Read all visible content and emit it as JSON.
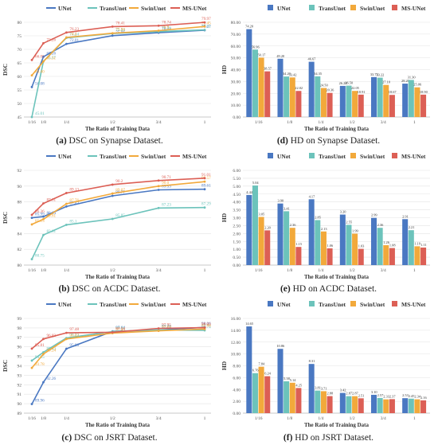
{
  "colors": {
    "UNet": "#4a78c2",
    "TransUnet": "#6cc3bb",
    "SwinUnet": "#f2a93b",
    "MS-UNet": "#dc5f55"
  },
  "chart_data": [
    {
      "id": "a",
      "type": "line",
      "caption_tag": "(a)",
      "caption_text": " DSC on Synapse Dataset.",
      "xlabel": "The Ratio of Training Data",
      "ylabel": "DSC",
      "categories": [
        "1/16",
        "1/8",
        "1/4",
        "1/2",
        "3/4",
        "1"
      ],
      "x_positions": [
        0.0625,
        0.125,
        0.25,
        0.5,
        0.75,
        1.0
      ],
      "ylim": [
        45,
        80
      ],
      "yticks": [
        45,
        50,
        55,
        60,
        65,
        70,
        75,
        80
      ],
      "series": [
        {
          "name": "UNet",
          "values": [
            56.08,
            67.26,
            72.01,
            75.06,
            76.14,
            77.07
          ],
          "labels": [
            "56.08",
            "67.26",
            "72.01",
            "75.06",
            "76.14",
            "77.07"
          ]
        },
        {
          "name": "TransUnet",
          "values": [
            45.01,
            65.57,
            74.24,
            75.84,
            76.56,
            77.21
          ],
          "labels": [
            "45.01",
            "65.57",
            "74.24",
            "75.84",
            "76.56",
            "77.21"
          ]
        },
        {
          "name": "SwinUnet",
          "values": [
            60.4,
            65.51,
            74.4,
            75.96,
            76.9,
            78.45
          ],
          "labels": [
            "60.40",
            "65.51",
            "74.4",
            "75.96",
            "76.9",
            "78.45"
          ]
        },
        {
          "name": "MS-UNet",
          "values": [
            66.05,
            72.26,
            76.23,
            78.41,
            78.74,
            79.97
          ],
          "labels": [
            "66.05",
            "72.26",
            "76.23",
            "78.41",
            "78.74",
            "79.97"
          ]
        }
      ]
    },
    {
      "id": "d",
      "type": "bar",
      "caption_tag": "(d)",
      "caption_text": " HD on Synapse Dataset.",
      "xlabel": "The Ratio of Training Data",
      "ylabel": "HD",
      "categories": [
        "1/16",
        "1/8",
        "1/4",
        "1/2",
        "3/4",
        "1"
      ],
      "ylim": [
        0,
        80
      ],
      "yticks": [
        0,
        10,
        20,
        30,
        40,
        50,
        60,
        70,
        80
      ],
      "ytick_labels": [
        "0.00",
        "10.00",
        "20.00",
        "30.00",
        "40.00",
        "50.00",
        "60.00",
        "70.00",
        "80.00"
      ],
      "series": [
        {
          "name": "UNet",
          "values": [
            74.2,
            49.2,
            46.67,
            26.28,
            33.73,
            28.2
          ],
          "labels": [
            "74.20",
            "49.20",
            "46.67",
            "26.28",
            "33.73",
            "28.20"
          ]
        },
        {
          "name": "TransUnet",
          "values": [
            56.96,
            34.2,
            34.35,
            26.5,
            33.22,
            31.3
          ],
          "labels": [
            "56.96",
            "34.20",
            "34.35",
            "26.50",
            "33.22",
            "31.30"
          ]
        },
        {
          "name": "SwinUnet",
          "values": [
            50.17,
            33.42,
            24.5,
            22.05,
            27.1,
            25.06
          ],
          "labels": [
            "50.17",
            "33.42",
            "24.50",
            "22.05",
            "27.10",
            "25.06"
          ]
        },
        {
          "name": "MS-UNet",
          "values": [
            38.57,
            22.02,
            20.36,
            18.91,
            18.67,
            18.9
          ],
          "labels": [
            "38.57",
            "22.02",
            "20.36",
            "18.91",
            "18.67",
            "18.90"
          ]
        }
      ]
    },
    {
      "id": "b",
      "type": "line",
      "caption_tag": "(b)",
      "caption_text": " DSC on ACDC Dataset.",
      "xlabel": "The Ratio of Training Data",
      "ylabel": "DSC",
      "categories": [
        "1/16",
        "1/8",
        "1/4",
        "1/2",
        "3/4",
        "1"
      ],
      "x_positions": [
        0.0625,
        0.125,
        0.25,
        0.5,
        0.75,
        1.0
      ],
      "ylim": [
        80,
        92
      ],
      "yticks": [
        80,
        82,
        84,
        86,
        88,
        90,
        92
      ],
      "series": [
        {
          "name": "UNet",
          "values": [
            85.99,
            86.14,
            87.42,
            88.77,
            89.53,
            89.61
          ],
          "labels": [
            "85.99",
            "86.14",
            "87.42",
            "88.77",
            "89.53",
            "89.61"
          ]
        },
        {
          "name": "TransUnet",
          "values": [
            80.75,
            83.81,
            85.1,
            85.85,
            87.23,
            87.29
          ],
          "labels": [
            "80.75",
            "83.81",
            "85.1",
            "85.85",
            "87.23",
            "87.29"
          ]
        },
        {
          "name": "SwinUnet",
          "values": [
            85.15,
            85.81,
            87.76,
            89.07,
            90.0,
            90.57
          ],
          "labels": [
            "85.15",
            "85.81",
            "87.76",
            "89.07",
            "90.0",
            "90.57"
          ]
        },
        {
          "name": "MS-UNet",
          "values": [
            86.36,
            87.81,
            89.13,
            90.2,
            90.71,
            91.01
          ],
          "labels": [
            "86.36",
            "87.81",
            "89.13",
            "90.2",
            "90.71",
            "91.01"
          ]
        }
      ]
    },
    {
      "id": "e",
      "type": "bar",
      "caption_tag": "(e)",
      "caption_text": " HD on ACDC Dataset.",
      "xlabel": "The Ratio of Training Data",
      "ylabel": "HD",
      "categories": [
        "1/16",
        "1/8",
        "1/4",
        "1/2",
        "3/4",
        "1"
      ],
      "ylim": [
        0,
        6
      ],
      "yticks": [
        0,
        0.5,
        1,
        1.5,
        2,
        2.5,
        3,
        3.5,
        4,
        4.5,
        5,
        5.5,
        6
      ],
      "ytick_labels": [
        "0.00",
        "0.50",
        "1.00",
        "1.50",
        "2.00",
        "2.50",
        "3.00",
        "3.50",
        "4.00",
        "4.50",
        "5.00",
        "5.50",
        "6.00"
      ],
      "series": [
        {
          "name": "UNet",
          "values": [
            4.44,
            3.9,
            4.17,
            3.2,
            2.99,
            2.91
          ],
          "labels": [
            "4.44",
            "3.90",
            "4.17",
            "3.20",
            "2.99",
            "2.91"
          ]
        },
        {
          "name": "TransUnet",
          "values": [
            5.04,
            3.41,
            2.85,
            2.55,
            2.36,
            2.21
          ],
          "labels": [
            "5.04",
            "3.41",
            "2.85",
            "2.55",
            "2.36",
            "2.21"
          ]
        },
        {
          "name": "SwinUnet",
          "values": [
            3.05,
            2.36,
            2.13,
            1.99,
            1.26,
            1.19
          ],
          "labels": [
            "3.05",
            "2.36",
            "2.13",
            "1.99",
            "1.26",
            "1.19"
          ]
        },
        {
          "name": "MS-UNet",
          "values": [
            2.2,
            1.15,
            1.06,
            1.03,
            1.08,
            1.11
          ],
          "labels": [
            "2.20",
            "1.15",
            "1.06",
            "1.03",
            "1.08",
            "1.11"
          ]
        }
      ]
    },
    {
      "id": "c",
      "type": "line",
      "caption_tag": "(c)",
      "caption_text": " DSC on JSRT Dataset.",
      "xlabel": "The Ratio of Training Data",
      "ylabel": "DSC",
      "categories": [
        "1/16",
        "1/8",
        "1/4",
        "1/2",
        "3/4",
        "1"
      ],
      "x_positions": [
        0.0625,
        0.125,
        0.25,
        0.5,
        0.75,
        1.0
      ],
      "ylim": [
        89,
        99
      ],
      "yticks": [
        89,
        90,
        91,
        92,
        93,
        94,
        95,
        96,
        97,
        98,
        99
      ],
      "series": [
        {
          "name": "UNet",
          "values": [
            89.96,
            92.26,
            95.8,
            97.64,
            97.78,
            98.06
          ],
          "labels": [
            "89.96",
            "92.26",
            "95.80",
            "97.64",
            "97.78",
            "98.06"
          ]
        },
        {
          "name": "TransUnet",
          "values": [
            94.55,
            95.43,
            96.93,
            97.61,
            97.79,
            97.74
          ],
          "labels": [
            "94.55",
            "95.43",
            "96.93",
            "97.61",
            "97.79",
            "97.74"
          ]
        },
        {
          "name": "SwinUnet",
          "values": [
            93.78,
            95.24,
            96.83,
            97.45,
            97.69,
            97.88
          ],
          "labels": [
            "93.78",
            "95.24",
            "96.83",
            "97.45",
            "97.69",
            "97.88"
          ]
        },
        {
          "name": "MS-UNet",
          "values": [
            95.81,
            96.83,
            97.48,
            97.54,
            97.95,
            98.03
          ],
          "labels": [
            "95.81",
            "96.83",
            "97.48",
            "97.54",
            "97.95",
            "98.03"
          ]
        }
      ]
    },
    {
      "id": "f",
      "type": "bar",
      "caption_tag": "(f)",
      "caption_text": " HD on JSRT Dataset.",
      "xlabel": "The Ratio of Training Data",
      "ylabel": "HD",
      "categories": [
        "1/16",
        "1/8",
        "1/4",
        "1/2",
        "3/4",
        "1"
      ],
      "ylim": [
        0,
        16
      ],
      "yticks": [
        0,
        2,
        4,
        6,
        8,
        10,
        12,
        14,
        16
      ],
      "ytick_labels": [
        "0.00",
        "2.00",
        "4.00",
        "6.00",
        "8.00",
        "10.00",
        "12.00",
        "14.00",
        "16.00"
      ],
      "series": [
        {
          "name": "UNet",
          "values": [
            14.65,
            10.86,
            8.31,
            3.42,
            3.1,
            2.53
          ],
          "labels": [
            "14.65",
            "10.86",
            "8.31",
            "3.42",
            "3.10",
            "2.53"
          ]
        },
        {
          "name": "TransUnet",
          "values": [
            6.76,
            5.38,
            3.81,
            2.87,
            2.57,
            2.45
          ],
          "labels": [
            "6.76",
            "5.38",
            "3.81",
            "2.87",
            "2.57",
            "2.45"
          ]
        },
        {
          "name": "SwinUnet",
          "values": [
            7.84,
            5.14,
            3.71,
            2.87,
            2.33,
            2.34
          ],
          "labels": [
            "7.84",
            "5.14",
            "3.71",
            "2.87",
            "2.33",
            "2.34"
          ]
        },
        {
          "name": "MS-UNet",
          "values": [
            6.24,
            4.25,
            2.88,
            2.51,
            2.37,
            2.16
          ],
          "labels": [
            "6.24",
            "4.25",
            "2.88",
            "2.51",
            "2.37",
            "2.16"
          ]
        }
      ]
    }
  ]
}
